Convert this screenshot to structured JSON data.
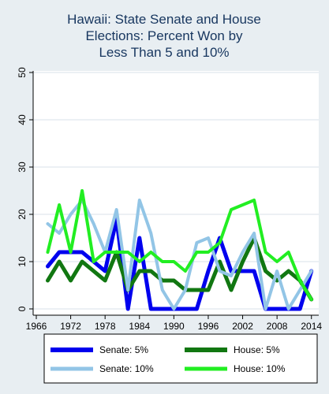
{
  "chart_data": {
    "type": "line",
    "title_lines": [
      "Hawaii: State Senate and House",
      "Elections: Percent Won by",
      "Less Than 5 and 10%"
    ],
    "xlabel": "",
    "ylabel": "",
    "xlim": [
      1966,
      2014
    ],
    "ylim": [
      0,
      50
    ],
    "x_ticks": [
      "1966",
      "1972",
      "1978",
      "1984",
      "1990",
      "1996",
      "2002",
      "2008",
      "2014"
    ],
    "y_ticks": [
      "0",
      "10",
      "20",
      "30",
      "40",
      "50"
    ],
    "grid": true,
    "legend_position": "bottom",
    "x": [
      1968,
      1970,
      1972,
      1974,
      1976,
      1978,
      1980,
      1982,
      1984,
      1986,
      1988,
      1990,
      1992,
      1994,
      1996,
      1998,
      2000,
      2002,
      2004,
      2006,
      2008,
      2010,
      2012,
      2014
    ],
    "series": [
      {
        "name": "Senate: 5%",
        "color": "#0000ee",
        "width": 5,
        "values": [
          9,
          12,
          12,
          12,
          10,
          8,
          19,
          0,
          15,
          0,
          0,
          0,
          0,
          0,
          8,
          15,
          8,
          8,
          8,
          0,
          0,
          0,
          0,
          8
        ]
      },
      {
        "name": "House: 5%",
        "color": "#117711",
        "width": 5,
        "values": [
          6,
          10,
          6,
          10,
          8,
          6,
          12,
          4,
          8,
          8,
          6,
          6,
          4,
          4,
          4,
          10,
          4,
          10,
          15,
          8,
          6,
          8,
          6,
          2
        ]
      },
      {
        "name": "Senate: 10%",
        "color": "#92c5e6",
        "width": 4,
        "values": [
          18,
          16,
          20,
          23,
          18,
          12,
          21,
          4,
          23,
          16,
          4,
          0,
          4,
          14,
          15,
          8,
          7,
          12,
          16,
          0,
          8,
          0,
          4,
          8
        ]
      },
      {
        "name": "House: 10%",
        "color": "#22ee22",
        "width": 4,
        "values": [
          12,
          22,
          12,
          25,
          10,
          12,
          12,
          12,
          10,
          12,
          10,
          10,
          8,
          12,
          12,
          14,
          21,
          22,
          23,
          12,
          10,
          12,
          6,
          2
        ]
      }
    ]
  }
}
